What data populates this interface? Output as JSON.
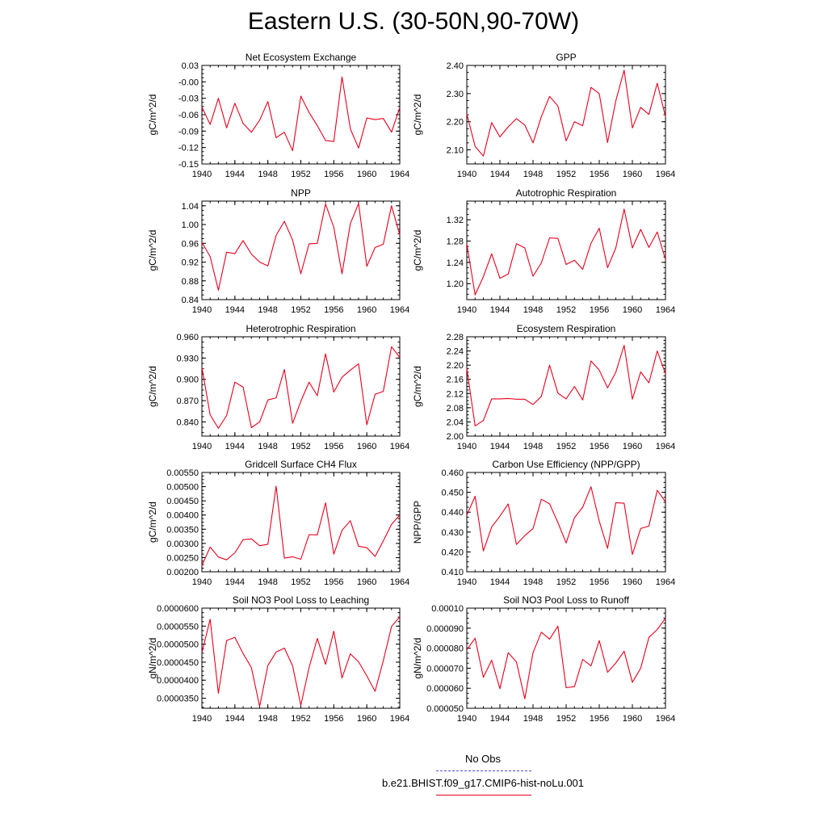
{
  "title": "Eastern U.S. (30-50N,90-70W)",
  "colors": {
    "model": "#e8001c",
    "obs": "#4a4ae0",
    "axis": "#000000"
  },
  "legend": [
    {
      "label": "No Obs",
      "style": "dashed",
      "color": "#4a4ae0"
    },
    {
      "label": "b.e21.BHIST.f09_g17.CMIP6-hist-noLu.001",
      "style": "solid",
      "color": "#e8001c"
    }
  ],
  "chart_data": [
    {
      "type": "line",
      "title": "Net Ecosystem Exchange",
      "ylabel": "gC/m^2/d",
      "xlim": [
        1940,
        1964
      ],
      "ylim": [
        -0.15,
        0.03
      ],
      "xticks": [
        "1940",
        "1944",
        "1948",
        "1952",
        "1956",
        "1960",
        "1964"
      ],
      "yticks": [
        "0.03",
        "-0.00",
        "-0.03",
        "-0.06",
        "-0.09",
        "-0.12",
        "-0.15"
      ],
      "ytick_values": [
        0.03,
        0.0,
        -0.03,
        -0.06,
        -0.09,
        -0.12,
        -0.15
      ],
      "x": [
        1940,
        1941,
        1942,
        1943,
        1944,
        1945,
        1946,
        1947,
        1948,
        1949,
        1950,
        1951,
        1952,
        1953,
        1954,
        1955,
        1956,
        1957,
        1958,
        1959,
        1960,
        1961,
        1962,
        1963,
        1964
      ],
      "series": [
        {
          "values": [
            -0.046,
            -0.078,
            -0.03,
            -0.084,
            -0.039,
            -0.076,
            -0.092,
            -0.07,
            -0.036,
            -0.102,
            -0.092,
            -0.126,
            -0.026,
            -0.056,
            -0.08,
            -0.107,
            -0.109,
            0.009,
            -0.086,
            -0.121,
            -0.066,
            -0.069,
            -0.067,
            -0.092,
            -0.047
          ]
        }
      ]
    },
    {
      "type": "line",
      "title": "GPP",
      "ylabel": "gC/m^2/d",
      "xlim": [
        1940,
        1964
      ],
      "ylim": [
        2.05,
        2.4
      ],
      "xticks": [
        "1940",
        "1944",
        "1948",
        "1952",
        "1956",
        "1960",
        "1964"
      ],
      "yticks": [
        "2.40",
        "2.30",
        "2.20",
        "2.10"
      ],
      "ytick_values": [
        2.4,
        2.3,
        2.2,
        2.1
      ],
      "x": [
        1940,
        1941,
        1942,
        1943,
        1944,
        1945,
        1946,
        1947,
        1948,
        1949,
        1950,
        1951,
        1952,
        1953,
        1954,
        1955,
        1956,
        1957,
        1958,
        1959,
        1960,
        1961,
        1962,
        1963,
        1964
      ],
      "series": [
        {
          "values": [
            2.228,
            2.112,
            2.078,
            2.197,
            2.146,
            2.182,
            2.211,
            2.188,
            2.125,
            2.218,
            2.29,
            2.256,
            2.132,
            2.2,
            2.186,
            2.322,
            2.3,
            2.126,
            2.274,
            2.383,
            2.178,
            2.251,
            2.226,
            2.337,
            2.218
          ]
        }
      ]
    },
    {
      "type": "line",
      "title": "NPP",
      "ylabel": "gC/m^2/d",
      "xlim": [
        1940,
        1964
      ],
      "ylim": [
        0.84,
        1.05
      ],
      "xticks": [
        "1940",
        "1944",
        "1948",
        "1952",
        "1956",
        "1960",
        "1964"
      ],
      "yticks": [
        "1.04",
        "1.00",
        "0.96",
        "0.92",
        "0.88",
        "0.84"
      ],
      "ytick_values": [
        1.04,
        1.0,
        0.96,
        0.92,
        0.88,
        0.84
      ],
      "x": [
        1940,
        1941,
        1942,
        1943,
        1944,
        1945,
        1946,
        1947,
        1948,
        1949,
        1950,
        1951,
        1952,
        1953,
        1954,
        1955,
        1956,
        1957,
        1958,
        1959,
        1960,
        1961,
        1962,
        1963,
        1964
      ],
      "series": [
        {
          "values": [
            0.962,
            0.932,
            0.86,
            0.941,
            0.938,
            0.966,
            0.937,
            0.92,
            0.912,
            0.977,
            1.007,
            0.967,
            0.895,
            0.959,
            0.96,
            1.044,
            0.994,
            0.895,
            1.002,
            1.045,
            0.911,
            0.951,
            0.958,
            1.04,
            0.978
          ]
        }
      ]
    },
    {
      "type": "line",
      "title": "Autotrophic Respiration",
      "ylabel": "gC/m^2/d",
      "xlim": [
        1940,
        1964
      ],
      "ylim": [
        1.17,
        1.355
      ],
      "xticks": [
        "1940",
        "1944",
        "1948",
        "1952",
        "1956",
        "1960",
        "1964"
      ],
      "yticks": [
        "1.32",
        "1.28",
        "1.24",
        "1.20"
      ],
      "ytick_values": [
        1.32,
        1.28,
        1.24,
        1.2
      ],
      "x": [
        1940,
        1941,
        1942,
        1943,
        1944,
        1945,
        1946,
        1947,
        1948,
        1949,
        1950,
        1951,
        1952,
        1953,
        1954,
        1955,
        1956,
        1957,
        1958,
        1959,
        1960,
        1961,
        1962,
        1963,
        1964
      ],
      "series": [
        {
          "values": [
            1.275,
            1.179,
            1.213,
            1.256,
            1.21,
            1.218,
            1.275,
            1.267,
            1.214,
            1.239,
            1.286,
            1.285,
            1.236,
            1.244,
            1.227,
            1.276,
            1.304,
            1.23,
            1.267,
            1.34,
            1.267,
            1.302,
            1.268,
            1.297,
            1.245
          ]
        }
      ]
    },
    {
      "type": "line",
      "title": "Heterotrophic Respiration",
      "ylabel": "gC/m^2/d",
      "xlim": [
        1940,
        1964
      ],
      "ylim": [
        0.82,
        0.96
      ],
      "xticks": [
        "1940",
        "1944",
        "1948",
        "1952",
        "1956",
        "1960",
        "1964"
      ],
      "yticks": [
        "0.960",
        "0.930",
        "0.900",
        "0.870",
        "0.840"
      ],
      "ytick_values": [
        0.96,
        0.93,
        0.9,
        0.87,
        0.84
      ],
      "x": [
        1940,
        1941,
        1942,
        1943,
        1944,
        1945,
        1946,
        1947,
        1948,
        1949,
        1950,
        1951,
        1952,
        1953,
        1954,
        1955,
        1956,
        1957,
        1958,
        1959,
        1960,
        1961,
        1962,
        1963,
        1964
      ],
      "series": [
        {
          "values": [
            0.917,
            0.85,
            0.831,
            0.849,
            0.896,
            0.889,
            0.832,
            0.84,
            0.871,
            0.874,
            0.914,
            0.838,
            0.869,
            0.896,
            0.877,
            0.936,
            0.882,
            0.903,
            0.913,
            0.922,
            0.836,
            0.879,
            0.883,
            0.946,
            0.931
          ]
        }
      ]
    },
    {
      "type": "line",
      "title": "Ecosystem Respiration",
      "ylabel": "gC/m^2/d",
      "xlim": [
        1940,
        1964
      ],
      "ylim": [
        2.0,
        2.28
      ],
      "xticks": [
        "1940",
        "1944",
        "1948",
        "1952",
        "1956",
        "1960",
        "1964"
      ],
      "yticks": [
        "2.28",
        "2.24",
        "2.20",
        "2.16",
        "2.12",
        "2.08",
        "2.04",
        "2.00"
      ],
      "ytick_values": [
        2.28,
        2.24,
        2.2,
        2.16,
        2.12,
        2.08,
        2.04,
        2.0
      ],
      "x": [
        1940,
        1941,
        1942,
        1943,
        1944,
        1945,
        1946,
        1947,
        1948,
        1949,
        1950,
        1951,
        1952,
        1953,
        1954,
        1955,
        1956,
        1957,
        1958,
        1959,
        1960,
        1961,
        1962,
        1963,
        1964
      ],
      "series": [
        {
          "values": [
            2.19,
            2.029,
            2.044,
            2.105,
            2.105,
            2.106,
            2.104,
            2.104,
            2.089,
            2.112,
            2.2,
            2.121,
            2.105,
            2.14,
            2.102,
            2.212,
            2.186,
            2.136,
            2.18,
            2.256,
            2.104,
            2.181,
            2.15,
            2.24,
            2.176
          ]
        }
      ]
    },
    {
      "type": "line",
      "title": "Gridcell Surface CH4 Flux",
      "ylabel": "gC/m^2/d",
      "xlim": [
        1940,
        1964
      ],
      "ylim": [
        0.002,
        0.0055
      ],
      "xticks": [
        "1940",
        "1944",
        "1948",
        "1952",
        "1956",
        "1960",
        "1964"
      ],
      "yticks": [
        "0.00550",
        "0.00500",
        "0.00450",
        "0.00400",
        "0.00350",
        "0.00300",
        "0.00250",
        "0.00200"
      ],
      "ytick_values": [
        0.0055,
        0.005,
        0.0045,
        0.004,
        0.0035,
        0.003,
        0.0025,
        0.002
      ],
      "x": [
        1940,
        1941,
        1942,
        1943,
        1944,
        1945,
        1946,
        1947,
        1948,
        1949,
        1950,
        1951,
        1952,
        1953,
        1954,
        1955,
        1956,
        1957,
        1958,
        1959,
        1960,
        1961,
        1962,
        1963,
        1964
      ],
      "series": [
        {
          "values": [
            0.00222,
            0.00287,
            0.00252,
            0.00242,
            0.00267,
            0.00313,
            0.00316,
            0.00292,
            0.00297,
            0.00502,
            0.00248,
            0.00253,
            0.00244,
            0.00331,
            0.0033,
            0.00443,
            0.00262,
            0.00346,
            0.0038,
            0.0029,
            0.00285,
            0.00254,
            0.00309,
            0.00367,
            0.004
          ]
        }
      ]
    },
    {
      "type": "line",
      "title": "Carbon Use Efficiency (NPP/GPP)",
      "ylabel": "NPP/GPP",
      "xlim": [
        1940,
        1964
      ],
      "ylim": [
        0.41,
        0.46
      ],
      "xticks": [
        "1940",
        "1944",
        "1948",
        "1952",
        "1956",
        "1960",
        "1964"
      ],
      "yticks": [
        "0.460",
        "0.450",
        "0.440",
        "0.430",
        "0.420",
        "0.410"
      ],
      "ytick_values": [
        0.46,
        0.45,
        0.44,
        0.43,
        0.42,
        0.41
      ],
      "x": [
        1940,
        1941,
        1942,
        1943,
        1944,
        1945,
        1946,
        1947,
        1948,
        1949,
        1950,
        1951,
        1952,
        1953,
        1954,
        1955,
        1956,
        1957,
        1958,
        1959,
        1960,
        1961,
        1962,
        1963,
        1964
      ],
      "series": [
        {
          "values": [
            0.4385,
            0.448,
            0.4205,
            0.4325,
            0.438,
            0.4442,
            0.4238,
            0.4282,
            0.4318,
            0.4465,
            0.4442,
            0.4348,
            0.4245,
            0.4372,
            0.4425,
            0.4528,
            0.4355,
            0.4218,
            0.4448,
            0.4445,
            0.4188,
            0.4318,
            0.433,
            0.451,
            0.4452
          ]
        }
      ]
    },
    {
      "type": "line",
      "title": "Soil NO3 Pool Loss to Leaching",
      "ylabel": "gN/m^2/d",
      "xlim": [
        1940,
        1964
      ],
      "ylim": [
        3.22e-05,
        6e-05
      ],
      "xticks": [
        "1940",
        "1944",
        "1948",
        "1952",
        "1956",
        "1960",
        "1964"
      ],
      "yticks": [
        "0.0000600",
        "0.0000550",
        "0.0000500",
        "0.0000450",
        "0.0000400",
        "0.0000350"
      ],
      "ytick_values": [
        6e-05,
        5.5e-05,
        5e-05,
        4.5e-05,
        4e-05,
        3.5e-05
      ],
      "x": [
        1940,
        1941,
        1942,
        1943,
        1944,
        1945,
        1946,
        1947,
        1948,
        1949,
        1950,
        1951,
        1952,
        1953,
        1954,
        1955,
        1956,
        1957,
        1958,
        1959,
        1960,
        1961,
        1962,
        1963,
        1964
      ],
      "series": [
        {
          "values": [
            4.76e-05,
            5.69e-05,
            3.64e-05,
            5.1e-05,
            5.19e-05,
            4.74e-05,
            4.35e-05,
            3.27e-05,
            4.41e-05,
            4.78e-05,
            4.89e-05,
            4.4e-05,
            3.3e-05,
            4.35e-05,
            5.16e-05,
            4.44e-05,
            5.36e-05,
            4.06e-05,
            4.73e-05,
            4.51e-05,
            4.12e-05,
            3.69e-05,
            4.54e-05,
            5.49e-05,
            5.76e-05
          ]
        }
      ]
    },
    {
      "type": "line",
      "title": "Soil NO3 Pool Loss to Runoff",
      "ylabel": "gN/m^2/d",
      "xlim": [
        1940,
        1964
      ],
      "ylim": [
        5e-05,
        0.0001
      ],
      "xticks": [
        "1940",
        "1944",
        "1948",
        "1952",
        "1956",
        "1960",
        "1964"
      ],
      "yticks": [
        "0.00010",
        "0.000090",
        "0.000080",
        "0.000070",
        "0.000060",
        "0.000050"
      ],
      "ytick_values": [
        0.0001,
        9e-05,
        8e-05,
        7e-05,
        6e-05,
        5e-05
      ],
      "x": [
        1940,
        1941,
        1942,
        1943,
        1944,
        1945,
        1946,
        1947,
        1948,
        1949,
        1950,
        1951,
        1952,
        1953,
        1954,
        1955,
        1956,
        1957,
        1958,
        1959,
        1960,
        1961,
        1962,
        1963,
        1964
      ],
      "series": [
        {
          "values": [
            7.92e-05,
            8.5e-05,
            6.55e-05,
            7.4e-05,
            5.98e-05,
            7.78e-05,
            7.31e-05,
            5.47e-05,
            7.78e-05,
            8.8e-05,
            8.45e-05,
            9.1e-05,
            6.03e-05,
            6.08e-05,
            7.44e-05,
            7.12e-05,
            8.38e-05,
            6.8e-05,
            7.26e-05,
            7.85e-05,
            6.3e-05,
            7e-05,
            8.54e-05,
            8.93e-05,
            9.5e-05
          ]
        }
      ]
    }
  ]
}
